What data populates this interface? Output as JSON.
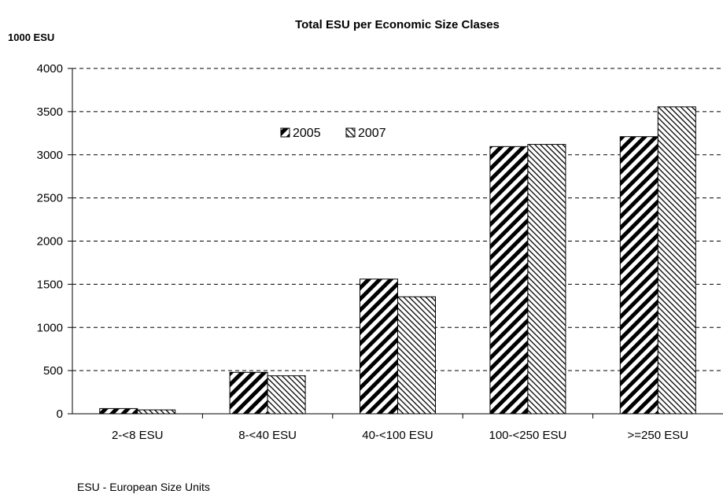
{
  "chart_data": {
    "type": "bar",
    "title": "Total ESU per Economic Size Clases",
    "ylabel": "1000 ESU",
    "xlabel": "",
    "categories": [
      "2-<8 ESU",
      "8-<40 ESU",
      "40-<100 ESU",
      "100-<250 ESU",
      ">=250 ESU"
    ],
    "series": [
      {
        "name": "2005",
        "values": [
          60,
          480,
          1560,
          3095,
          3210
        ],
        "pattern": "dense-diagonal"
      },
      {
        "name": "2007",
        "values": [
          45,
          440,
          1355,
          3120,
          3555
        ],
        "pattern": "light-diagonal"
      }
    ],
    "ylim": [
      0,
      4000
    ],
    "yticks": [
      0,
      500,
      1000,
      1500,
      2000,
      2500,
      3000,
      3500,
      4000
    ],
    "grid": "dashed horizontal",
    "legend_position": "top-center"
  },
  "footnote": "ESU - European Size Units",
  "colors": {
    "bar_fill": "#ffffff",
    "bar_stroke": "#000000",
    "grid": "#000000"
  }
}
